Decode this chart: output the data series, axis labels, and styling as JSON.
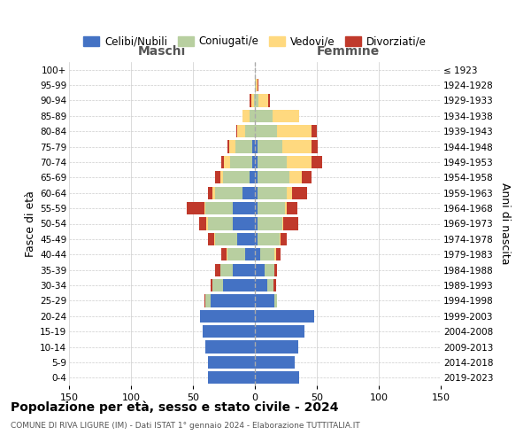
{
  "age_groups": [
    "0-4",
    "5-9",
    "10-14",
    "15-19",
    "20-24",
    "25-29",
    "30-34",
    "35-39",
    "40-44",
    "45-49",
    "50-54",
    "55-59",
    "60-64",
    "65-69",
    "70-74",
    "75-79",
    "80-84",
    "85-89",
    "90-94",
    "95-99",
    "100+"
  ],
  "birth_years": [
    "2019-2023",
    "2014-2018",
    "2009-2013",
    "2004-2008",
    "1999-2003",
    "1994-1998",
    "1989-1993",
    "1984-1988",
    "1979-1983",
    "1974-1978",
    "1969-1973",
    "1964-1968",
    "1959-1963",
    "1954-1958",
    "1949-1953",
    "1944-1948",
    "1939-1943",
    "1934-1938",
    "1929-1933",
    "1924-1928",
    "≤ 1923"
  ],
  "maschi_celibi": [
    38,
    38,
    40,
    42,
    44,
    36,
    26,
    18,
    8,
    14,
    18,
    18,
    10,
    4,
    2,
    2,
    0,
    0,
    0,
    0,
    0
  ],
  "maschi_coniugati": [
    0,
    0,
    0,
    0,
    0,
    4,
    8,
    10,
    14,
    18,
    20,
    22,
    22,
    22,
    18,
    14,
    8,
    4,
    1,
    0,
    0
  ],
  "maschi_vedovi": [
    0,
    0,
    0,
    0,
    0,
    0,
    0,
    0,
    1,
    1,
    1,
    1,
    2,
    2,
    5,
    5,
    6,
    6,
    2,
    0,
    0
  ],
  "maschi_divorziati": [
    0,
    0,
    0,
    0,
    0,
    1,
    2,
    4,
    4,
    5,
    6,
    14,
    4,
    4,
    2,
    1,
    1,
    0,
    1,
    0,
    0
  ],
  "femmine_nubili": [
    36,
    32,
    35,
    40,
    48,
    16,
    10,
    8,
    4,
    2,
    2,
    2,
    2,
    2,
    2,
    2,
    0,
    0,
    0,
    0,
    0
  ],
  "femmine_coniugate": [
    0,
    0,
    0,
    0,
    0,
    2,
    5,
    8,
    12,
    18,
    20,
    22,
    24,
    26,
    24,
    20,
    18,
    14,
    3,
    1,
    0
  ],
  "femmine_vedove": [
    0,
    0,
    0,
    0,
    0,
    0,
    0,
    0,
    1,
    1,
    1,
    2,
    4,
    10,
    20,
    24,
    28,
    22,
    8,
    1,
    0
  ],
  "femmine_divorziate": [
    0,
    0,
    0,
    0,
    0,
    0,
    2,
    2,
    4,
    5,
    12,
    8,
    12,
    8,
    8,
    5,
    4,
    0,
    1,
    1,
    0
  ],
  "colors_celibi": "#4472c4",
  "colors_coniugati": "#b8cfa0",
  "colors_vedovi": "#ffd97f",
  "colors_divorziati": "#c0392b",
  "xlim": 150,
  "title": "Popolazione per età, sesso e stato civile - 2024",
  "subtitle": "COMUNE DI RIVA LIGURE (IM) - Dati ISTAT 1° gennaio 2024 - Elaborazione TUTTITALIA.IT",
  "ylabel_left": "Fasce di età",
  "ylabel_right": "Anni di nascita",
  "legend_labels": [
    "Celibi/Nubili",
    "Coniugati/e",
    "Vedovi/e",
    "Divorziati/e"
  ],
  "label_maschi": "Maschi",
  "label_femmine": "Femmine"
}
